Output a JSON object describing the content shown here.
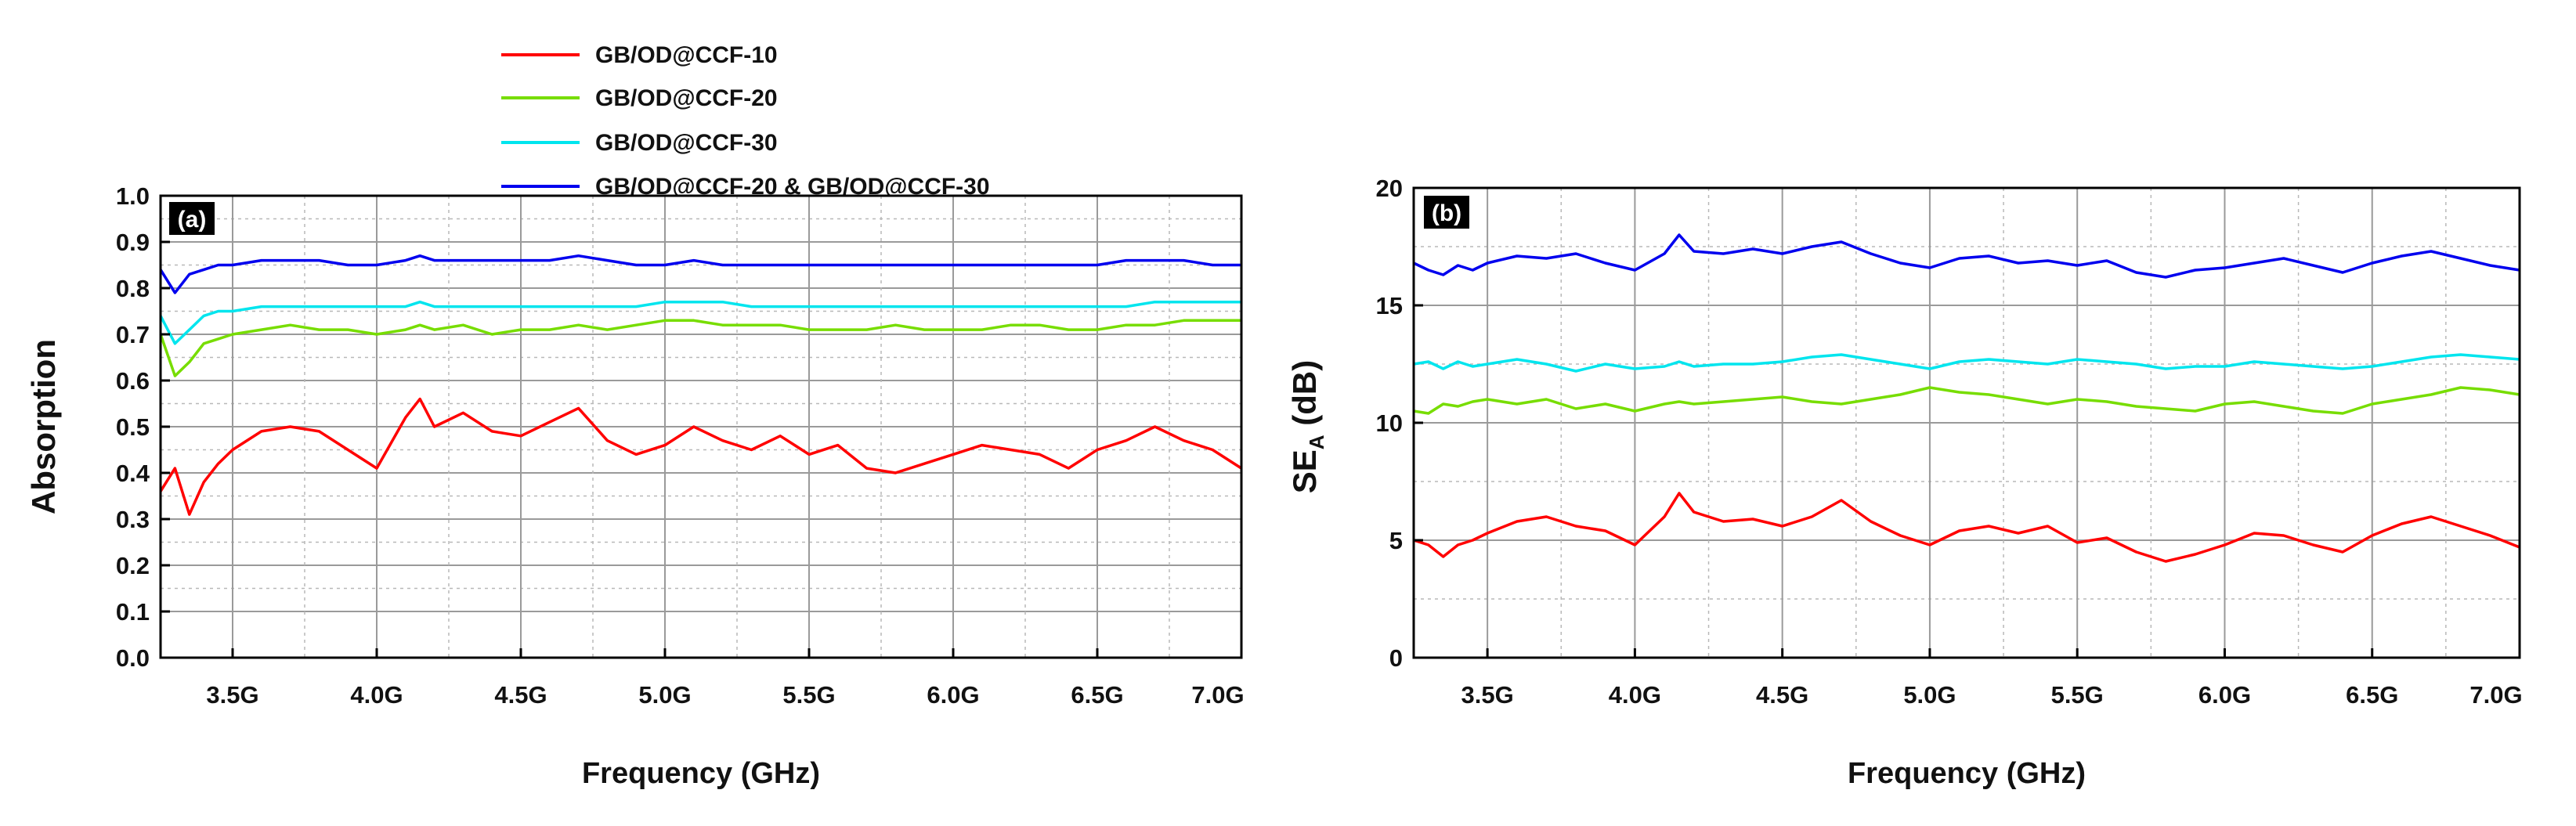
{
  "legend": {
    "entries": [
      {
        "label": "GB/OD@CCF-10",
        "color": "#ff0000"
      },
      {
        "label": "GB/OD@CCF-20",
        "color": "#77dd00"
      },
      {
        "label": "GB/OD@CCF-30",
        "color": "#00e5ee"
      },
      {
        "label": "GB/OD@CCF-20 & GB/OD@CCF-30",
        "color": "#0000ee"
      }
    ]
  },
  "chart_data": [
    {
      "type": "line",
      "panel_label": "(a)",
      "xlabel": "Frequency (GHz)",
      "ylabel": "Absorption",
      "xlim": [
        3.25,
        7.0
      ],
      "ylim": [
        0.0,
        1.0
      ],
      "xticks": [
        "3.5G",
        "4.0G",
        "4.5G",
        "5.0G",
        "5.5G",
        "6.0G",
        "6.5G",
        "7.0G"
      ],
      "yticks": [
        "0.0",
        "0.1",
        "0.2",
        "0.3",
        "0.4",
        "0.5",
        "0.6",
        "0.7",
        "0.8",
        "0.9",
        "1.0"
      ],
      "grid": true,
      "x": [
        3.25,
        3.3,
        3.35,
        3.4,
        3.45,
        3.5,
        3.6,
        3.7,
        3.8,
        3.9,
        4.0,
        4.1,
        4.15,
        4.2,
        4.3,
        4.4,
        4.5,
        4.6,
        4.7,
        4.8,
        4.9,
        5.0,
        5.1,
        5.2,
        5.3,
        5.4,
        5.5,
        5.6,
        5.7,
        5.8,
        5.9,
        6.0,
        6.1,
        6.2,
        6.3,
        6.4,
        6.5,
        6.6,
        6.7,
        6.8,
        6.9,
        7.0
      ],
      "series": [
        {
          "name": "GB/OD@CCF-10",
          "color": "#ff0000",
          "values": [
            0.36,
            0.41,
            0.31,
            0.38,
            0.42,
            0.45,
            0.49,
            0.5,
            0.49,
            0.45,
            0.41,
            0.52,
            0.56,
            0.5,
            0.53,
            0.49,
            0.48,
            0.51,
            0.54,
            0.47,
            0.44,
            0.46,
            0.5,
            0.47,
            0.45,
            0.48,
            0.44,
            0.46,
            0.41,
            0.4,
            0.42,
            0.44,
            0.46,
            0.45,
            0.44,
            0.41,
            0.45,
            0.47,
            0.5,
            0.47,
            0.45,
            0.41
          ]
        },
        {
          "name": "GB/OD@CCF-20",
          "color": "#77dd00",
          "values": [
            0.7,
            0.61,
            0.64,
            0.68,
            0.69,
            0.7,
            0.71,
            0.72,
            0.71,
            0.71,
            0.7,
            0.71,
            0.72,
            0.71,
            0.72,
            0.7,
            0.71,
            0.71,
            0.72,
            0.71,
            0.72,
            0.73,
            0.73,
            0.72,
            0.72,
            0.72,
            0.71,
            0.71,
            0.71,
            0.72,
            0.71,
            0.71,
            0.71,
            0.72,
            0.72,
            0.71,
            0.71,
            0.72,
            0.72,
            0.73,
            0.73,
            0.73
          ]
        },
        {
          "name": "GB/OD@CCF-30",
          "color": "#00e5ee",
          "values": [
            0.74,
            0.68,
            0.71,
            0.74,
            0.75,
            0.75,
            0.76,
            0.76,
            0.76,
            0.76,
            0.76,
            0.76,
            0.77,
            0.76,
            0.76,
            0.76,
            0.76,
            0.76,
            0.76,
            0.76,
            0.76,
            0.77,
            0.77,
            0.77,
            0.76,
            0.76,
            0.76,
            0.76,
            0.76,
            0.76,
            0.76,
            0.76,
            0.76,
            0.76,
            0.76,
            0.76,
            0.76,
            0.76,
            0.77,
            0.77,
            0.77,
            0.77
          ]
        },
        {
          "name": "GB/OD@CCF-20 & GB/OD@CCF-30",
          "color": "#0000ee",
          "values": [
            0.84,
            0.79,
            0.83,
            0.84,
            0.85,
            0.85,
            0.86,
            0.86,
            0.86,
            0.85,
            0.85,
            0.86,
            0.87,
            0.86,
            0.86,
            0.86,
            0.86,
            0.86,
            0.87,
            0.86,
            0.85,
            0.85,
            0.86,
            0.85,
            0.85,
            0.85,
            0.85,
            0.85,
            0.85,
            0.85,
            0.85,
            0.85,
            0.85,
            0.85,
            0.85,
            0.85,
            0.85,
            0.86,
            0.86,
            0.86,
            0.85,
            0.85
          ]
        }
      ]
    },
    {
      "type": "line",
      "panel_label": "(b)",
      "xlabel": "Frequency (GHz)",
      "ylabel": "SE",
      "ylabel_subscript": "A",
      "ylabel_unit": " (dB)",
      "xlim": [
        3.25,
        7.0
      ],
      "ylim": [
        0,
        20
      ],
      "xticks": [
        "3.5G",
        "4.0G",
        "4.5G",
        "5.0G",
        "5.5G",
        "6.0G",
        "6.5G",
        "7.0G"
      ],
      "yticks": [
        "0",
        "5",
        "10",
        "15",
        "20"
      ],
      "grid": true,
      "x": [
        3.25,
        3.3,
        3.35,
        3.4,
        3.45,
        3.5,
        3.6,
        3.7,
        3.8,
        3.9,
        4.0,
        4.1,
        4.15,
        4.2,
        4.3,
        4.4,
        4.5,
        4.6,
        4.7,
        4.8,
        4.9,
        5.0,
        5.1,
        5.2,
        5.3,
        5.4,
        5.5,
        5.6,
        5.7,
        5.8,
        5.9,
        6.0,
        6.1,
        6.2,
        6.3,
        6.4,
        6.5,
        6.6,
        6.7,
        6.8,
        6.9,
        7.0
      ],
      "series": [
        {
          "name": "GB/OD@CCF-10",
          "color": "#ff0000",
          "values": [
            5.0,
            4.8,
            4.3,
            4.8,
            5.0,
            5.3,
            5.8,
            6.0,
            5.6,
            5.4,
            4.8,
            6.0,
            7.0,
            6.2,
            5.8,
            5.9,
            5.6,
            6.0,
            6.7,
            5.8,
            5.2,
            4.8,
            5.4,
            5.6,
            5.3,
            5.6,
            4.9,
            5.1,
            4.5,
            4.1,
            4.4,
            4.8,
            5.3,
            5.2,
            4.8,
            4.5,
            5.2,
            5.7,
            6.0,
            5.6,
            5.2,
            4.7
          ]
        },
        {
          "name": "GB/OD@CCF-20",
          "color": "#77dd00",
          "values": [
            10.5,
            10.4,
            10.8,
            10.7,
            10.9,
            11.0,
            10.8,
            11.0,
            10.6,
            10.8,
            10.5,
            10.8,
            10.9,
            10.8,
            10.9,
            11.0,
            11.1,
            10.9,
            10.8,
            11.0,
            11.2,
            11.5,
            11.3,
            11.2,
            11.0,
            10.8,
            11.0,
            10.9,
            10.7,
            10.6,
            10.5,
            10.8,
            10.9,
            10.7,
            10.5,
            10.4,
            10.8,
            11.0,
            11.2,
            11.5,
            11.4,
            11.2
          ]
        },
        {
          "name": "GB/OD@CCF-30",
          "color": "#00e5ee",
          "values": [
            12.5,
            12.6,
            12.3,
            12.6,
            12.4,
            12.5,
            12.7,
            12.5,
            12.2,
            12.5,
            12.3,
            12.4,
            12.6,
            12.4,
            12.5,
            12.5,
            12.6,
            12.8,
            12.9,
            12.7,
            12.5,
            12.3,
            12.6,
            12.7,
            12.6,
            12.5,
            12.7,
            12.6,
            12.5,
            12.3,
            12.4,
            12.4,
            12.6,
            12.5,
            12.4,
            12.3,
            12.4,
            12.6,
            12.8,
            12.9,
            12.8,
            12.7
          ]
        },
        {
          "name": "GB/OD@CCF-20 & GB/OD@CCF-30",
          "color": "#0000ee",
          "values": [
            16.8,
            16.5,
            16.3,
            16.7,
            16.5,
            16.8,
            17.1,
            17.0,
            17.2,
            16.8,
            16.5,
            17.2,
            18.0,
            17.3,
            17.2,
            17.4,
            17.2,
            17.5,
            17.7,
            17.2,
            16.8,
            16.6,
            17.0,
            17.1,
            16.8,
            16.9,
            16.7,
            16.9,
            16.4,
            16.2,
            16.5,
            16.6,
            16.8,
            17.0,
            16.7,
            16.4,
            16.8,
            17.1,
            17.3,
            17.0,
            16.7,
            16.5
          ]
        }
      ]
    }
  ]
}
